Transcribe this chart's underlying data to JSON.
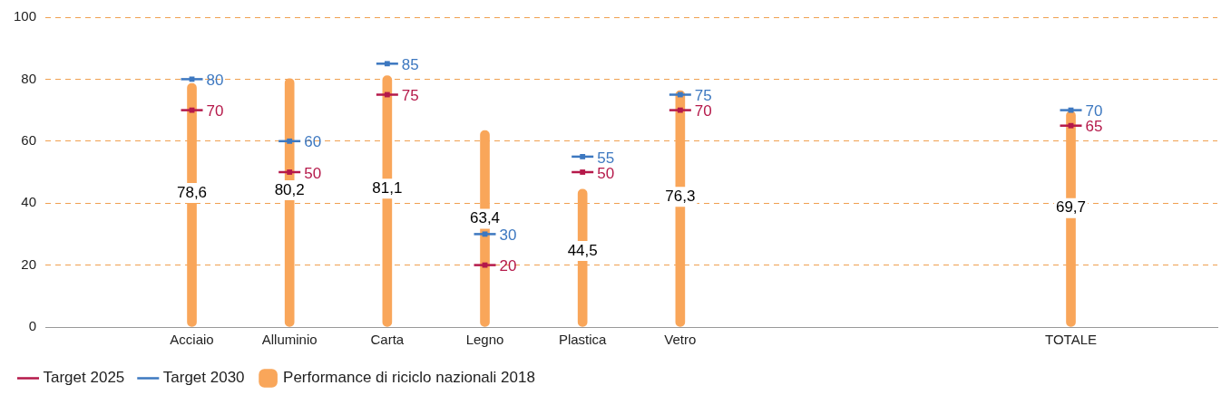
{
  "chart_data": {
    "type": "bar",
    "categories": [
      null,
      "Acciaio",
      "Alluminio",
      "Carta",
      "Legno",
      "Plastica",
      "Vetro",
      null,
      null,
      null,
      "TOTALE",
      null
    ],
    "series": [
      {
        "name": "Target 2025",
        "type": "scatter",
        "color": "#b5194a",
        "values": [
          null,
          70,
          50,
          75,
          20,
          50,
          70,
          null,
          null,
          null,
          65,
          null
        ],
        "value_labels": [
          null,
          "70",
          "50",
          "75",
          "20",
          "50",
          "70",
          null,
          null,
          null,
          "65",
          null
        ]
      },
      {
        "name": "Target 2030",
        "type": "scatter",
        "color": "#3d78c0",
        "values": [
          null,
          80,
          60,
          85,
          30,
          55,
          75,
          null,
          null,
          null,
          70,
          null
        ],
        "value_labels": [
          null,
          "80",
          "60",
          "85",
          "30",
          "55",
          "75",
          null,
          null,
          null,
          "70",
          null
        ]
      },
      {
        "name": "Performance di riciclo nazionali 2018",
        "color": "#f9a65a",
        "values": [
          null,
          78.6,
          80.2,
          81.1,
          63.4,
          44.5,
          76.3,
          null,
          null,
          null,
          69.7,
          null
        ],
        "value_labels": [
          null,
          "78,6",
          "80,2",
          "81,1",
          "63,4",
          "44,5",
          "76,3",
          null,
          null,
          null,
          "69,7",
          null
        ]
      }
    ],
    "ylim": [
      0,
      100
    ],
    "yticks": [
      0,
      20,
      40,
      60,
      80,
      100
    ],
    "grid": "y",
    "legend": "bottom left"
  }
}
